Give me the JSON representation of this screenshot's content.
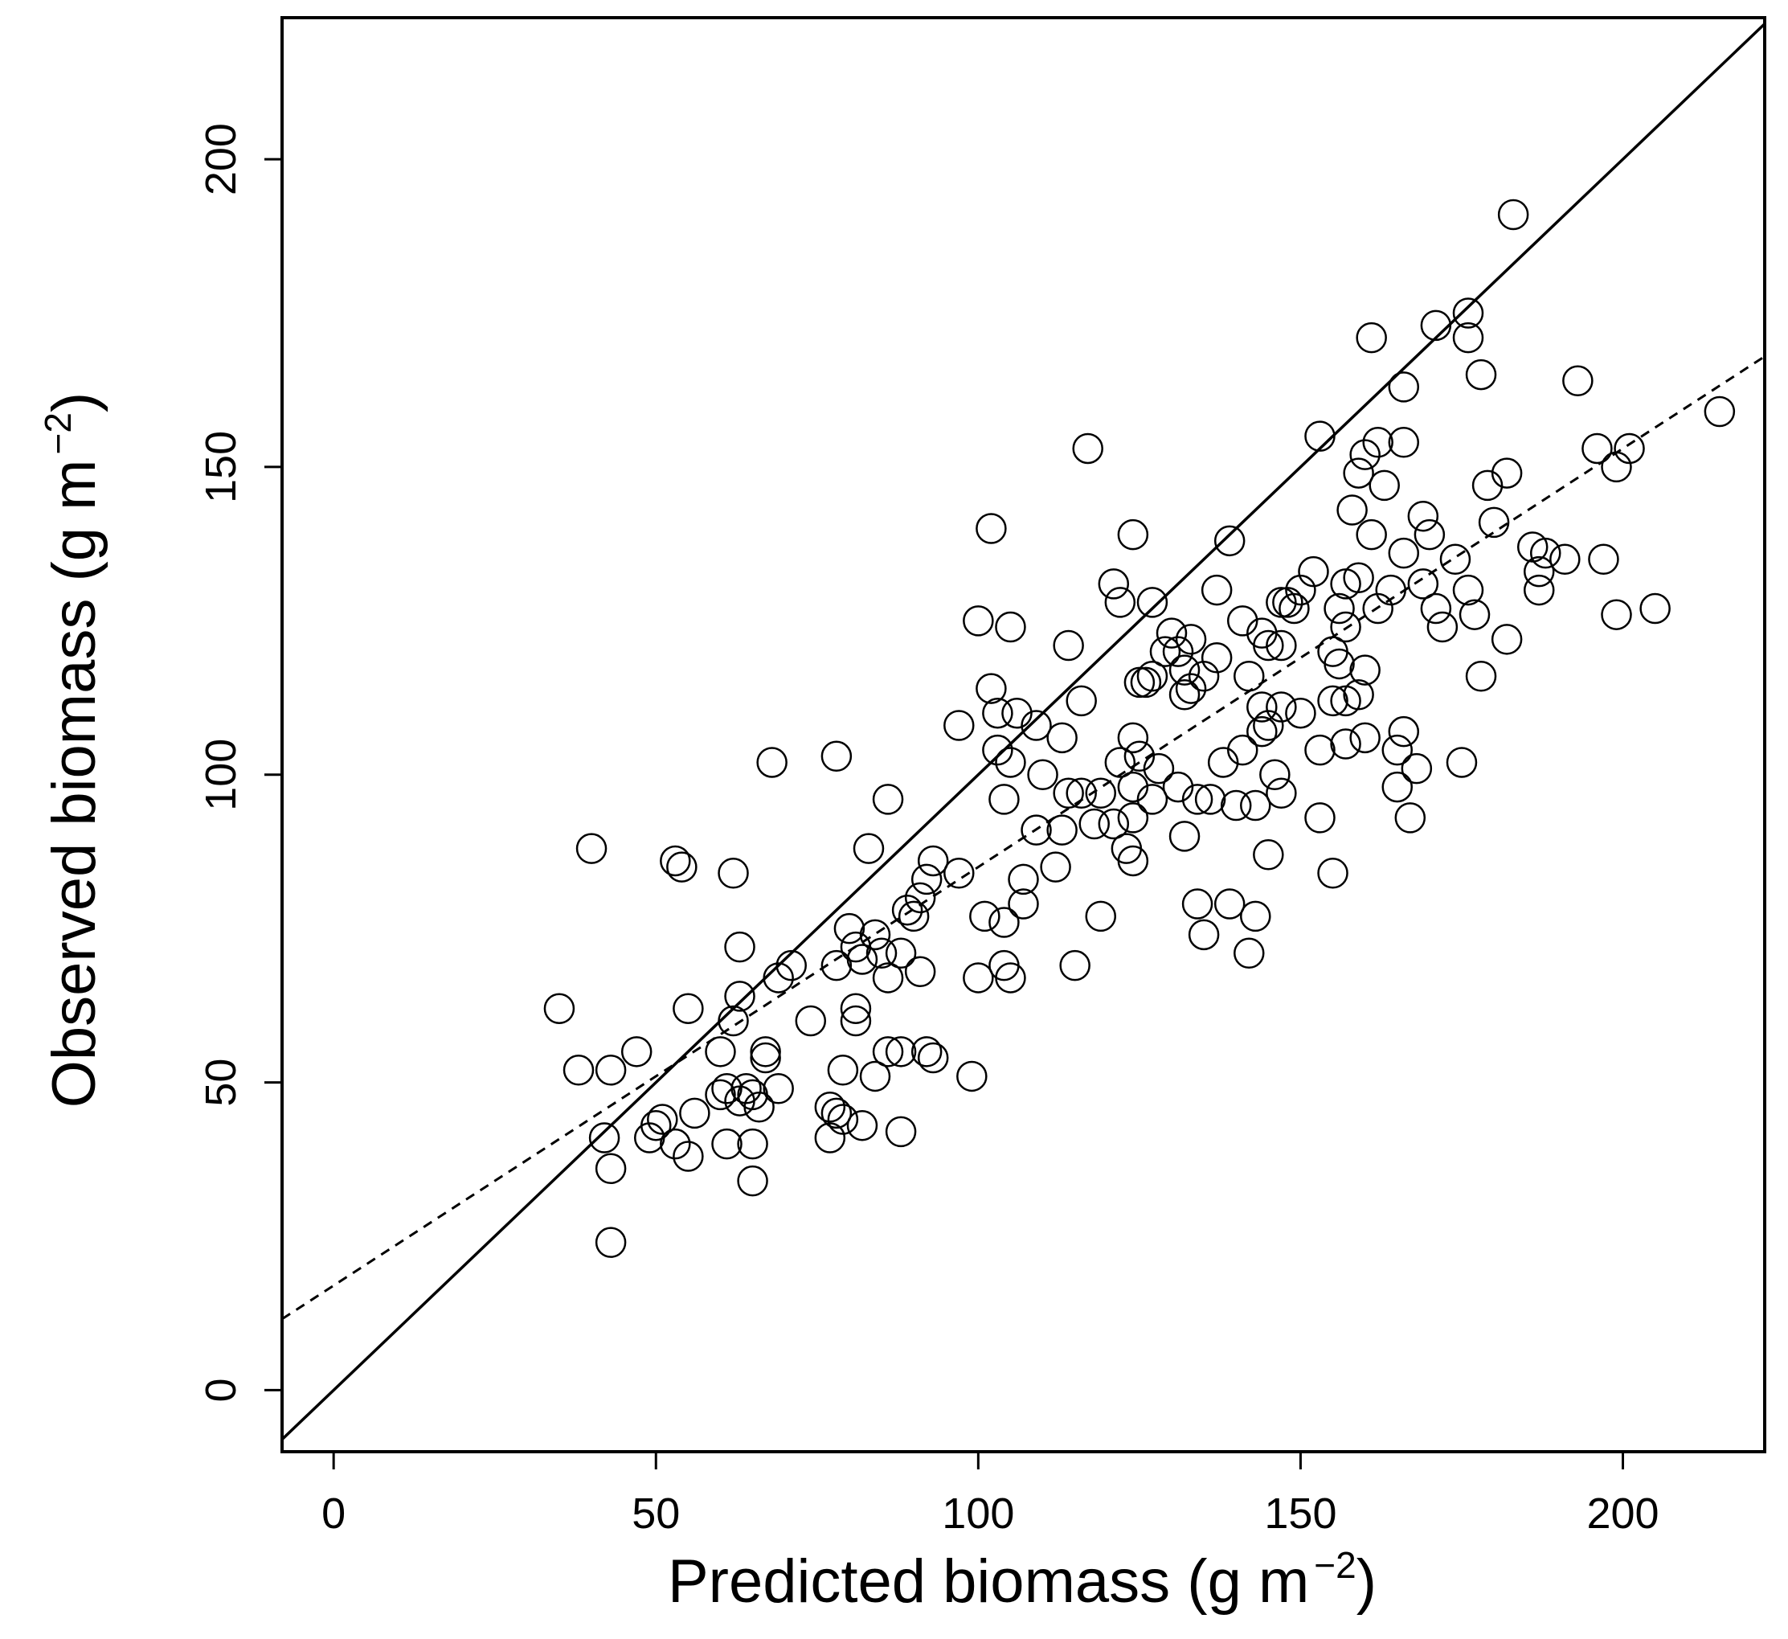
{
  "chart_data": {
    "type": "scatter",
    "title": "",
    "xlabel": "Predicted biomass (g m",
    "xlabel_exponent": "−2",
    "xlabel_close": ")",
    "ylabel": "Observed biomass (g m",
    "ylabel_exponent": "−2",
    "ylabel_close": ")",
    "xlim": [
      -8,
      222
    ],
    "ylim": [
      -10,
      223
    ],
    "x_ticks": [
      0,
      50,
      100,
      150,
      200
    ],
    "y_ticks": [
      0,
      50,
      100,
      150,
      200
    ],
    "x_tick_labels": [
      "0",
      "50",
      "100",
      "150",
      "200"
    ],
    "y_tick_labels": [
      "0",
      "50",
      "100",
      "150",
      "200"
    ],
    "marker": "open-circle",
    "reference_lines": [
      {
        "name": "1:1 line",
        "style": "solid",
        "slope": 1.0,
        "intercept": 0
      },
      {
        "name": "regression fit",
        "style": "dashed",
        "slope": 0.68,
        "intercept": 17
      }
    ],
    "points": [
      [
        183,
        191
      ],
      [
        176,
        175
      ],
      [
        171,
        173
      ],
      [
        176,
        171
      ],
      [
        161,
        171
      ],
      [
        178,
        165
      ],
      [
        193,
        164
      ],
      [
        166,
        163
      ],
      [
        215,
        159
      ],
      [
        153,
        155
      ],
      [
        117,
        153
      ],
      [
        162,
        154
      ],
      [
        166,
        154
      ],
      [
        196,
        153
      ],
      [
        201,
        153
      ],
      [
        160,
        152
      ],
      [
        199,
        150
      ],
      [
        182,
        149
      ],
      [
        179,
        147
      ],
      [
        163,
        147
      ],
      [
        159,
        149
      ],
      [
        158,
        143
      ],
      [
        169,
        142
      ],
      [
        180,
        141
      ],
      [
        102,
        140
      ],
      [
        124,
        139
      ],
      [
        139,
        138
      ],
      [
        161,
        139
      ],
      [
        170,
        139
      ],
      [
        186,
        137
      ],
      [
        188,
        136
      ],
      [
        174,
        135
      ],
      [
        166,
        136
      ],
      [
        191,
        135
      ],
      [
        197,
        135
      ],
      [
        187,
        133
      ],
      [
        152,
        133
      ],
      [
        176,
        130
      ],
      [
        169,
        131
      ],
      [
        157,
        131
      ],
      [
        137,
        130
      ],
      [
        159,
        132
      ],
      [
        121,
        131
      ],
      [
        150,
        130
      ],
      [
        164,
        130
      ],
      [
        127,
        128
      ],
      [
        149,
        127
      ],
      [
        156,
        127
      ],
      [
        171,
        127
      ],
      [
        148,
        128
      ],
      [
        162,
        127
      ],
      [
        122,
        128
      ],
      [
        187,
        130
      ],
      [
        199,
        126
      ],
      [
        205,
        127
      ],
      [
        177,
        126
      ],
      [
        147,
        128
      ],
      [
        141,
        125
      ],
      [
        100,
        125
      ],
      [
        105,
        124
      ],
      [
        172,
        124
      ],
      [
        130,
        123
      ],
      [
        144,
        123
      ],
      [
        157,
        124
      ],
      [
        145,
        121
      ],
      [
        133,
        122
      ],
      [
        129,
        120
      ],
      [
        147,
        121
      ],
      [
        182,
        122
      ],
      [
        131,
        120
      ],
      [
        114,
        121
      ],
      [
        155,
        120
      ],
      [
        137,
        119
      ],
      [
        156,
        118
      ],
      [
        132,
        117
      ],
      [
        160,
        117
      ],
      [
        178,
        116
      ],
      [
        142,
        116
      ],
      [
        125,
        115
      ],
      [
        135,
        116
      ],
      [
        126,
        115
      ],
      [
        127,
        116
      ],
      [
        133,
        114
      ],
      [
        102,
        114
      ],
      [
        132,
        113
      ],
      [
        155,
        112
      ],
      [
        157,
        112
      ],
      [
        116,
        112
      ],
      [
        144,
        111
      ],
      [
        147,
        111
      ],
      [
        159,
        113
      ],
      [
        103,
        110
      ],
      [
        106,
        110
      ],
      [
        150,
        110
      ],
      [
        97,
        108
      ],
      [
        109,
        108
      ],
      [
        145,
        108
      ],
      [
        144,
        107
      ],
      [
        166,
        107
      ],
      [
        160,
        106
      ],
      [
        124,
        106
      ],
      [
        113,
        106
      ],
      [
        157,
        105
      ],
      [
        103,
        104
      ],
      [
        141,
        104
      ],
      [
        165,
        104
      ],
      [
        125,
        103
      ],
      [
        153,
        104
      ],
      [
        68,
        102
      ],
      [
        78,
        103
      ],
      [
        105,
        102
      ],
      [
        122,
        102
      ],
      [
        138,
        102
      ],
      [
        168,
        101
      ],
      [
        175,
        102
      ],
      [
        146,
        100
      ],
      [
        128,
        101
      ],
      [
        110,
        100
      ],
      [
        131,
        98
      ],
      [
        147,
        97
      ],
      [
        124,
        98
      ],
      [
        165,
        98
      ],
      [
        86,
        96
      ],
      [
        104,
        96
      ],
      [
        114,
        97
      ],
      [
        116,
        97
      ],
      [
        119,
        97
      ],
      [
        127,
        96
      ],
      [
        136,
        96
      ],
      [
        134,
        96
      ],
      [
        140,
        95
      ],
      [
        143,
        95
      ],
      [
        121,
        92
      ],
      [
        124,
        93
      ],
      [
        153,
        93
      ],
      [
        167,
        93
      ],
      [
        109,
        91
      ],
      [
        113,
        91
      ],
      [
        118,
        92
      ],
      [
        132,
        90
      ],
      [
        40,
        88
      ],
      [
        83,
        88
      ],
      [
        123,
        88
      ],
      [
        145,
        87
      ],
      [
        53,
        86
      ],
      [
        93,
        86
      ],
      [
        54,
        85
      ],
      [
        62,
        84
      ],
      [
        97,
        84
      ],
      [
        112,
        85
      ],
      [
        124,
        86
      ],
      [
        155,
        84
      ],
      [
        92,
        83
      ],
      [
        107,
        83
      ],
      [
        91,
        80
      ],
      [
        107,
        79
      ],
      [
        134,
        79
      ],
      [
        139,
        79
      ],
      [
        89,
        78
      ],
      [
        90,
        77
      ],
      [
        101,
        77
      ],
      [
        104,
        76
      ],
      [
        119,
        77
      ],
      [
        143,
        77
      ],
      [
        80,
        75
      ],
      [
        84,
        74
      ],
      [
        63,
        72
      ],
      [
        81,
        72
      ],
      [
        85,
        71
      ],
      [
        88,
        71
      ],
      [
        135,
        74
      ],
      [
        142,
        71
      ],
      [
        78,
        69
      ],
      [
        82,
        70
      ],
      [
        91,
        68
      ],
      [
        104,
        69
      ],
      [
        115,
        69
      ],
      [
        71,
        69
      ],
      [
        69,
        67
      ],
      [
        86,
        67
      ],
      [
        100,
        67
      ],
      [
        105,
        67
      ],
      [
        63,
        64
      ],
      [
        62,
        60
      ],
      [
        81,
        62
      ],
      [
        74,
        60
      ],
      [
        81,
        60
      ],
      [
        35,
        62
      ],
      [
        55,
        62
      ],
      [
        47,
        55
      ],
      [
        60,
        55
      ],
      [
        67,
        55
      ],
      [
        86,
        55
      ],
      [
        67,
        54
      ],
      [
        88,
        55
      ],
      [
        92,
        55
      ],
      [
        93,
        54
      ],
      [
        38,
        52
      ],
      [
        43,
        52
      ],
      [
        79,
        52
      ],
      [
        84,
        51
      ],
      [
        99,
        51
      ],
      [
        61,
        49
      ],
      [
        64,
        49
      ],
      [
        69,
        49
      ],
      [
        60,
        48
      ],
      [
        65,
        48
      ],
      [
        63,
        47
      ],
      [
        66,
        46
      ],
      [
        56,
        45
      ],
      [
        77,
        46
      ],
      [
        51,
        44
      ],
      [
        78,
        45
      ],
      [
        50,
        43
      ],
      [
        79,
        44
      ],
      [
        82,
        43
      ],
      [
        42,
        41
      ],
      [
        49,
        41
      ],
      [
        53,
        40
      ],
      [
        61,
        40
      ],
      [
        65,
        40
      ],
      [
        77,
        41
      ],
      [
        88,
        42
      ],
      [
        55,
        38
      ],
      [
        43,
        36
      ],
      [
        65,
        34
      ],
      [
        43,
        24
      ]
    ]
  }
}
